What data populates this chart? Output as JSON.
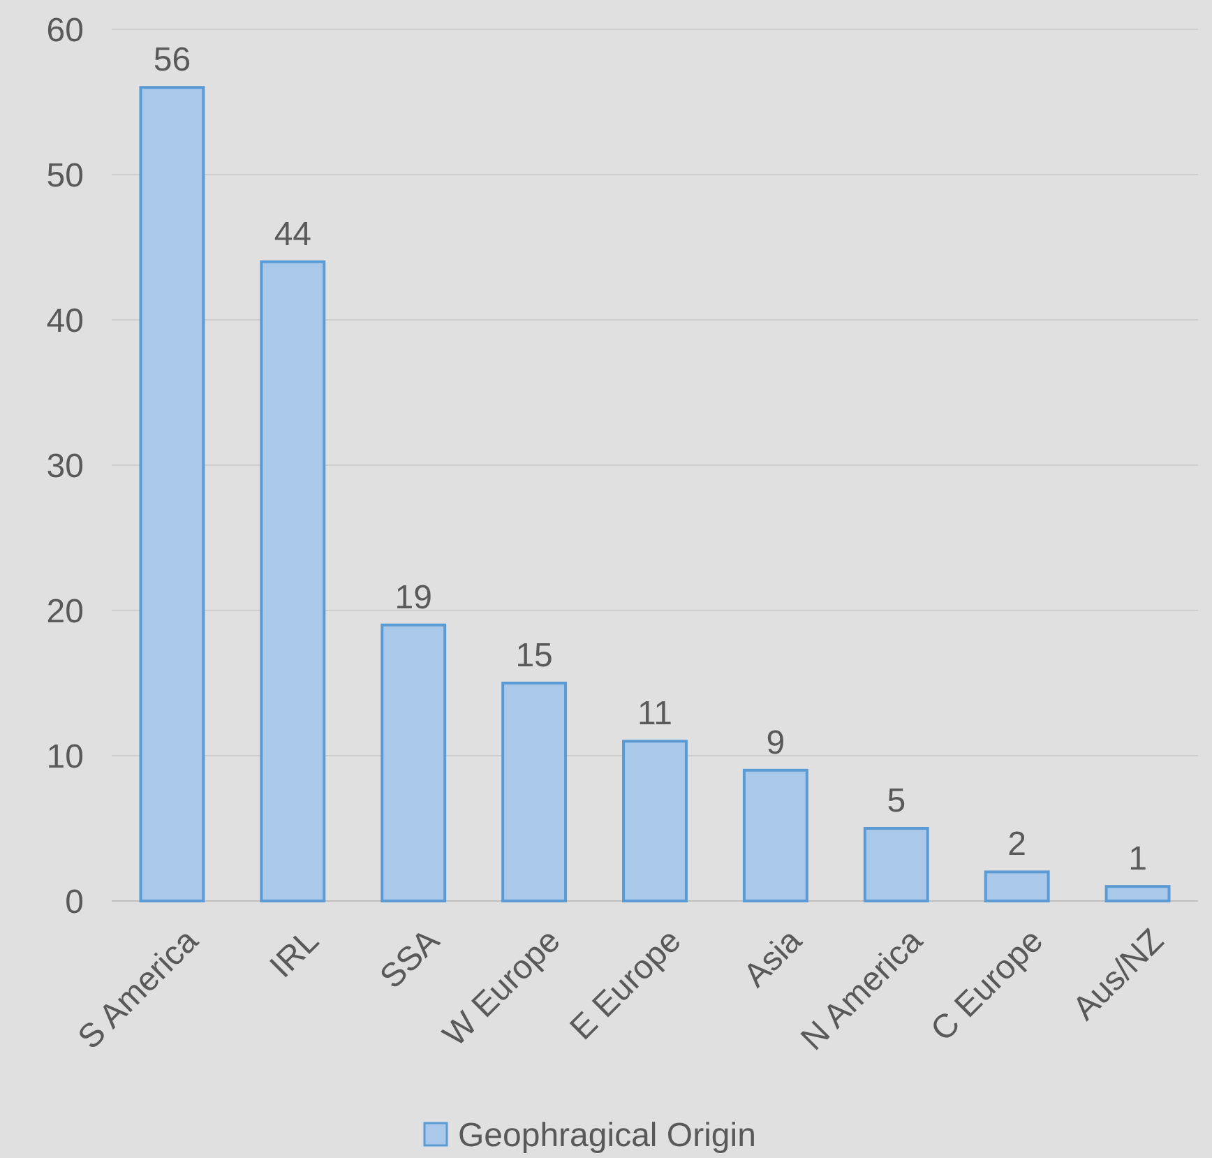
{
  "chart_data": {
    "type": "bar",
    "categories": [
      "S America",
      "IRL",
      "SSA",
      "W Europe",
      "E Europe",
      "Asia",
      "N America",
      "C Europe",
      "Aus/NZ"
    ],
    "series": [
      {
        "name": "Geophragical Origin",
        "color": "#a9c8ea",
        "values": [
          56,
          44,
          19,
          15,
          11,
          9,
          5,
          2,
          1
        ]
      }
    ],
    "ylim": [
      0,
      60
    ],
    "yticks": [
      0,
      10,
      20,
      30,
      40,
      50,
      60
    ],
    "grid": "y",
    "data_labels": true,
    "legend": "bottom"
  }
}
